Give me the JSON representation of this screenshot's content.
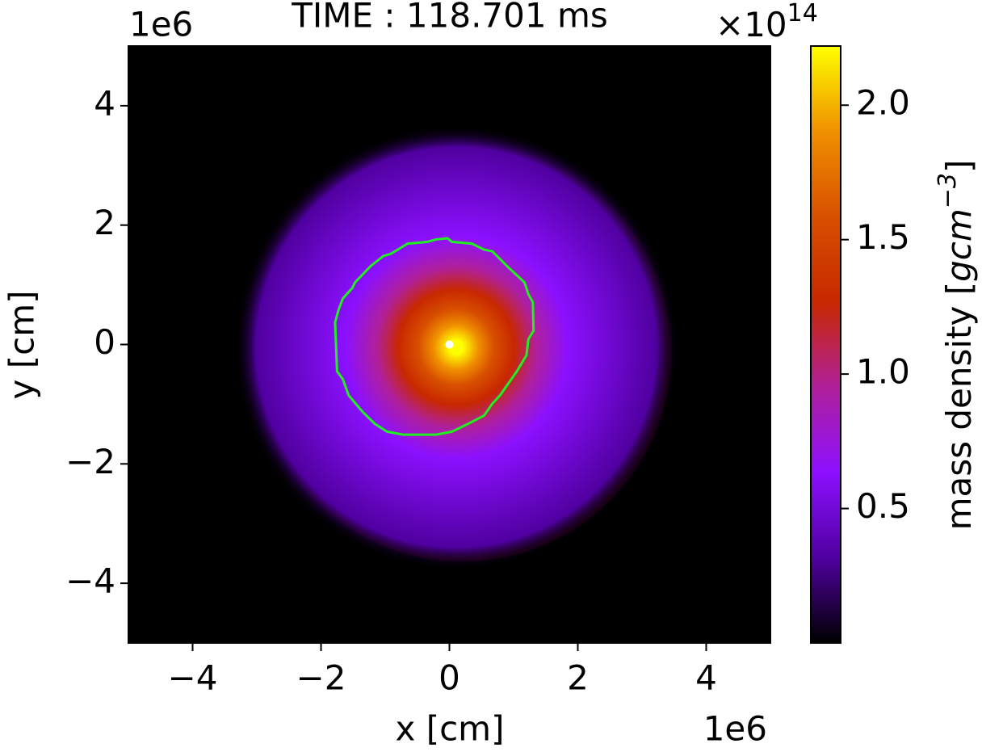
{
  "chart_data": {
    "type": "density-map",
    "title": "TIME : 118.701 ms",
    "x_label": "x [cm]",
    "y_label": "y [cm]",
    "x_offset": "1e6",
    "y_offset": "1e6",
    "xlim": [
      -5,
      5
    ],
    "ylim": [
      -5,
      5
    ],
    "xticks": [
      {
        "value": -4,
        "label": "−4"
      },
      {
        "value": -2,
        "label": "−2"
      },
      0,
      2,
      4
    ],
    "yticks": [
      {
        "value": -4,
        "label": "−4"
      },
      {
        "value": -2,
        "label": "−2"
      },
      0,
      2,
      4
    ],
    "colorbar_label": [
      "mass density [",
      "gcm",
      "−3",
      "]"
    ],
    "colorbar_offset": [
      "×10",
      "14"
    ],
    "clim": [
      0,
      2.22
    ],
    "cticks": [
      0.5,
      {
        "value": 1,
        "label": "1.0"
      },
      1.5,
      {
        "value": 2,
        "label": "2.0"
      }
    ],
    "colormap": [
      "#000000",
      "#5000a0",
      "#8c10ff",
      "#b0209a",
      "#c82800",
      "#d85000",
      "#f09000",
      "#ffff00"
    ],
    "contour": {
      "color": "#22ee22",
      "x": [
        -0.21,
        -0.03,
        0.04,
        0.35,
        0.54,
        0.67,
        0.92,
        1.17,
        1.23,
        1.3,
        1.31,
        1.23,
        1.2,
        1.05,
        0.92,
        0.79,
        0.67,
        0.54,
        0.29,
        0.04,
        -0.21,
        -0.72,
        -0.97,
        -1.16,
        -1.35,
        -1.57,
        -1.66,
        -1.75,
        -1.78,
        -1.73,
        -1.66,
        -1.51,
        -1.47,
        -1.22,
        -1.03,
        -0.91,
        -0.65,
        -0.34,
        -0.21
      ],
      "y": [
        1.76,
        1.78,
        1.72,
        1.69,
        1.59,
        1.56,
        1.29,
        1.04,
        0.84,
        0.71,
        0.23,
        0.09,
        -0.18,
        -0.45,
        -0.65,
        -0.85,
        -0.99,
        -1.19,
        -1.33,
        -1.46,
        -1.51,
        -1.51,
        -1.46,
        -1.33,
        -1.13,
        -0.85,
        -0.58,
        -0.45,
        0.37,
        0.57,
        0.77,
        0.95,
        1.04,
        1.32,
        1.48,
        1.52,
        1.69,
        1.72,
        1.76
      ]
    },
    "center": {
      "x": 0,
      "y": 0
    }
  }
}
